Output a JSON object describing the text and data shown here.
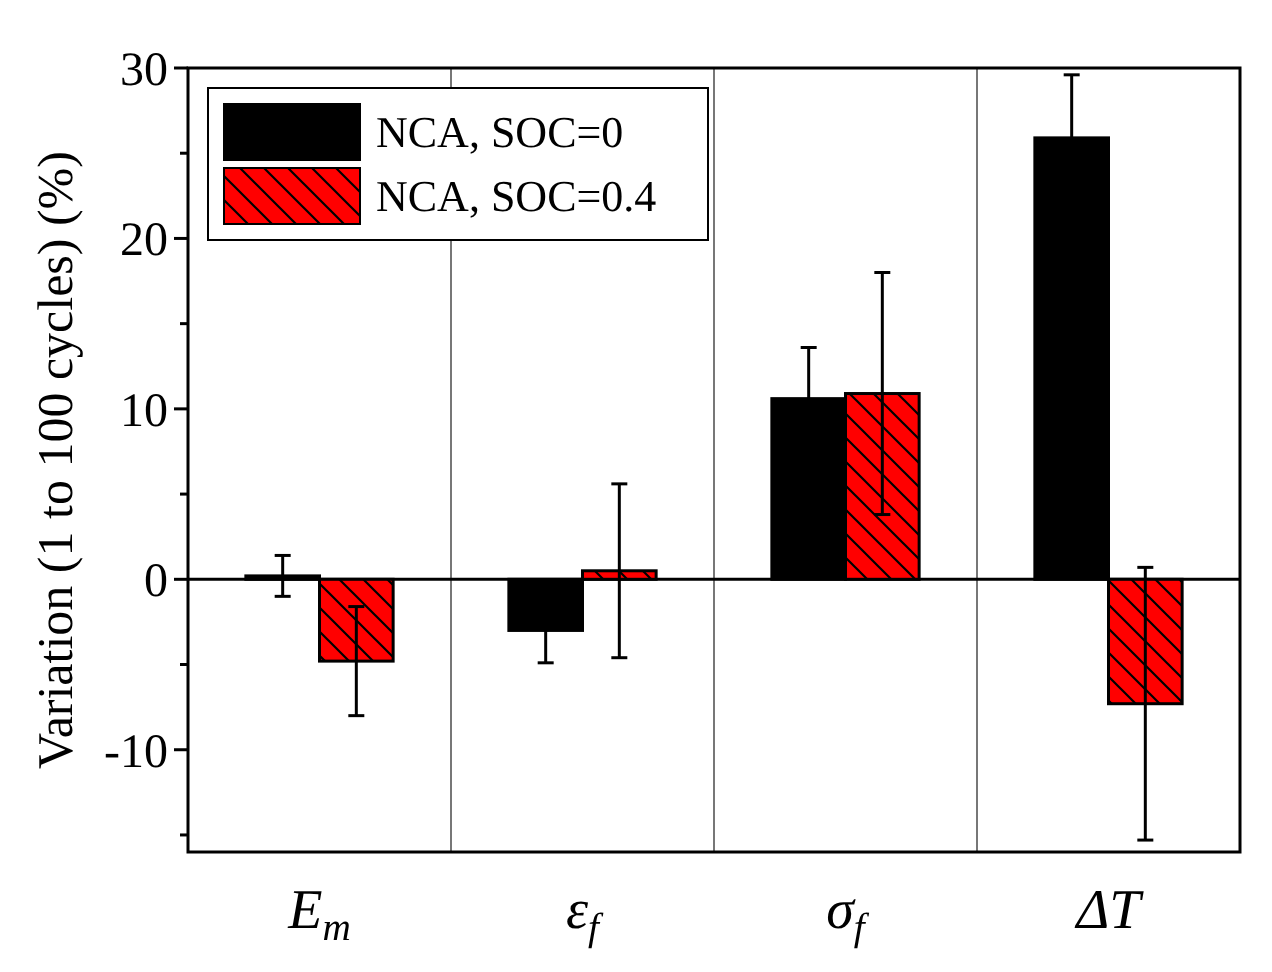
{
  "chart_data": {
    "type": "bar",
    "ylabel": "Variation (1 to 100 cycles) (%)",
    "categories": [
      "E$_{m}$",
      "ε$_{f}$",
      "σ$_{f}$",
      "ΔT"
    ],
    "series": [
      {
        "name": "NCA, SOC=0",
        "color": "#000000",
        "values": [
          0.2,
          -3.0,
          10.6,
          25.9
        ],
        "errors": [
          1.2,
          1.9,
          3.0,
          3.7
        ]
      },
      {
        "name": "NCA, SOC=0.4",
        "color": "#ff0000",
        "values": [
          -4.8,
          0.5,
          10.9,
          -7.3
        ],
        "errors": [
          3.2,
          5.1,
          7.1,
          8.0
        ]
      }
    ],
    "ylim": [
      -16,
      30
    ],
    "yticks": [
      {
        "value": -15,
        "label": null
      },
      -10,
      {
        "value": -5,
        "label": null
      },
      0,
      {
        "value": 5,
        "label": null
      },
      10,
      {
        "value": 15,
        "label": null
      },
      20,
      {
        "value": 25,
        "label": null
      },
      30
    ],
    "grid": "x",
    "legend": "top left"
  }
}
